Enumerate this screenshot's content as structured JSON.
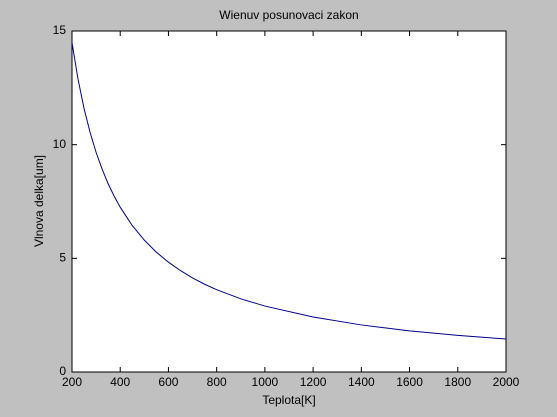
{
  "chart_data": {
    "type": "line",
    "title": "Wienuv posunovaci zakon",
    "x_label": "Teplota[K]",
    "y_label": "Vlnova delka[um]",
    "x": [
      200,
      225,
      250,
      275,
      300,
      325,
      350,
      375,
      400,
      450,
      500,
      550,
      600,
      650,
      700,
      750,
      800,
      900,
      1000,
      1200,
      1400,
      1600,
      1800,
      2000
    ],
    "series": [
      {
        "name": "lambda",
        "color": "#00008b",
        "values": [
          14.49,
          12.88,
          11.59,
          10.54,
          9.66,
          8.92,
          8.28,
          7.73,
          7.25,
          6.44,
          5.8,
          5.27,
          4.83,
          4.46,
          4.14,
          3.86,
          3.62,
          3.22,
          2.9,
          2.42,
          2.07,
          1.81,
          1.61,
          1.45
        ]
      }
    ],
    "xlim": [
      200,
      2000
    ],
    "ylim": [
      0,
      15
    ],
    "xticks": [
      200,
      400,
      600,
      800,
      1000,
      1200,
      1400,
      1600,
      1800,
      2000
    ],
    "yticks": [
      0,
      5,
      10,
      15
    ],
    "grid": false
  }
}
